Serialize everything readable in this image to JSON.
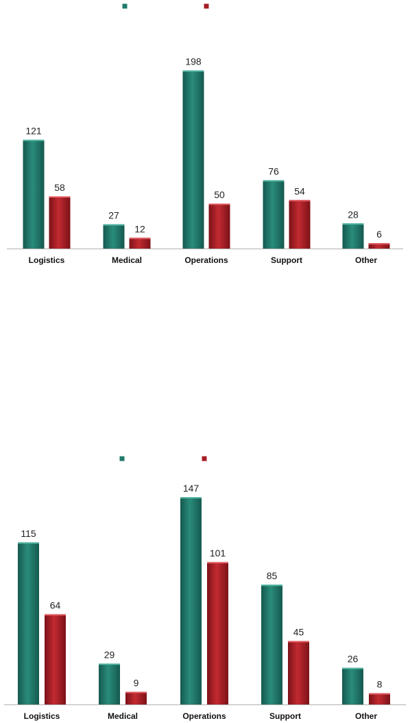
{
  "colors": {
    "series_a": "#1f7a6b",
    "series_b": "#a51c24",
    "axis": "#b0b0b0"
  },
  "chart_data": [
    {
      "type": "bar",
      "categories": [
        "Logistics",
        "Medical",
        "Operations",
        "Support",
        "Other"
      ],
      "series": [
        {
          "values": [
            121,
            27,
            198,
            76,
            28
          ]
        },
        {
          "values": [
            58,
            12,
            50,
            54,
            6
          ]
        }
      ],
      "ylim": [
        0,
        200
      ],
      "grid": false,
      "legend": "top-center",
      "data_labels": true
    },
    {
      "type": "bar",
      "categories": [
        "Logistics",
        "Medical",
        "Operations",
        "Support",
        "Other"
      ],
      "series": [
        {
          "values": [
            115,
            29,
            147,
            85,
            26
          ]
        },
        {
          "values": [
            64,
            9,
            101,
            45,
            8
          ]
        }
      ],
      "ylim": [
        0,
        150
      ],
      "grid": false,
      "legend": "top-center",
      "data_labels": true
    }
  ]
}
